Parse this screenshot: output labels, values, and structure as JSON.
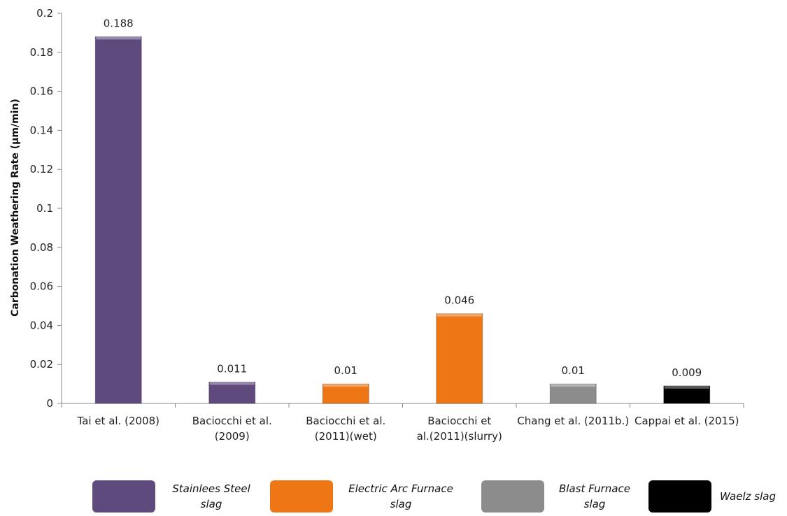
{
  "chart_data": {
    "type": "bar",
    "title": "",
    "ylabel": "Carbonation Weathering Rate (µm/min)",
    "xlabel": "",
    "ylim": [
      0,
      0.2
    ],
    "ytick_labels": [
      "0",
      "0.02",
      "0.04",
      "0.06",
      "0.08",
      "0.1",
      "0.12",
      "0.14",
      "0.16",
      "0.18",
      "0.2"
    ],
    "ytick_values": [
      0,
      0.02,
      0.04,
      0.06,
      0.08,
      0.1,
      0.12,
      0.14,
      0.16,
      0.18,
      0.2
    ],
    "categories": [
      [
        "Tai et al. (2008)"
      ],
      [
        "Baciocchi et al.",
        "(2009)"
      ],
      [
        "Baciocchi et al.",
        "(2011)(wet)"
      ],
      [
        "Baciocchi et",
        "al.(2011)(slurry)"
      ],
      [
        "Chang et al. (2011b.)"
      ],
      [
        "Cappai et al. (2015)"
      ]
    ],
    "values": [
      0.188,
      0.011,
      0.01,
      0.046,
      0.01,
      0.009
    ],
    "data_labels": [
      "0.188",
      "0.011",
      "0.01",
      "0.046",
      "0.01",
      "0.009"
    ],
    "bar_colors": [
      "#5f4a7e",
      "#5f4a7e",
      "#ef7614",
      "#ef7614",
      "#8c8c8c",
      "#000000"
    ],
    "grid": false,
    "legend_position": "bottom"
  },
  "legend": [
    {
      "label": "Stainlees Steel\nslag",
      "color": "#5f4a7e"
    },
    {
      "label": "Electric Arc Furnace\nslag",
      "color": "#ef7614"
    },
    {
      "label": "Blast Furnace\nslag",
      "color": "#8c8c8c"
    },
    {
      "label": "Waelz slag",
      "color": "#000000"
    }
  ]
}
